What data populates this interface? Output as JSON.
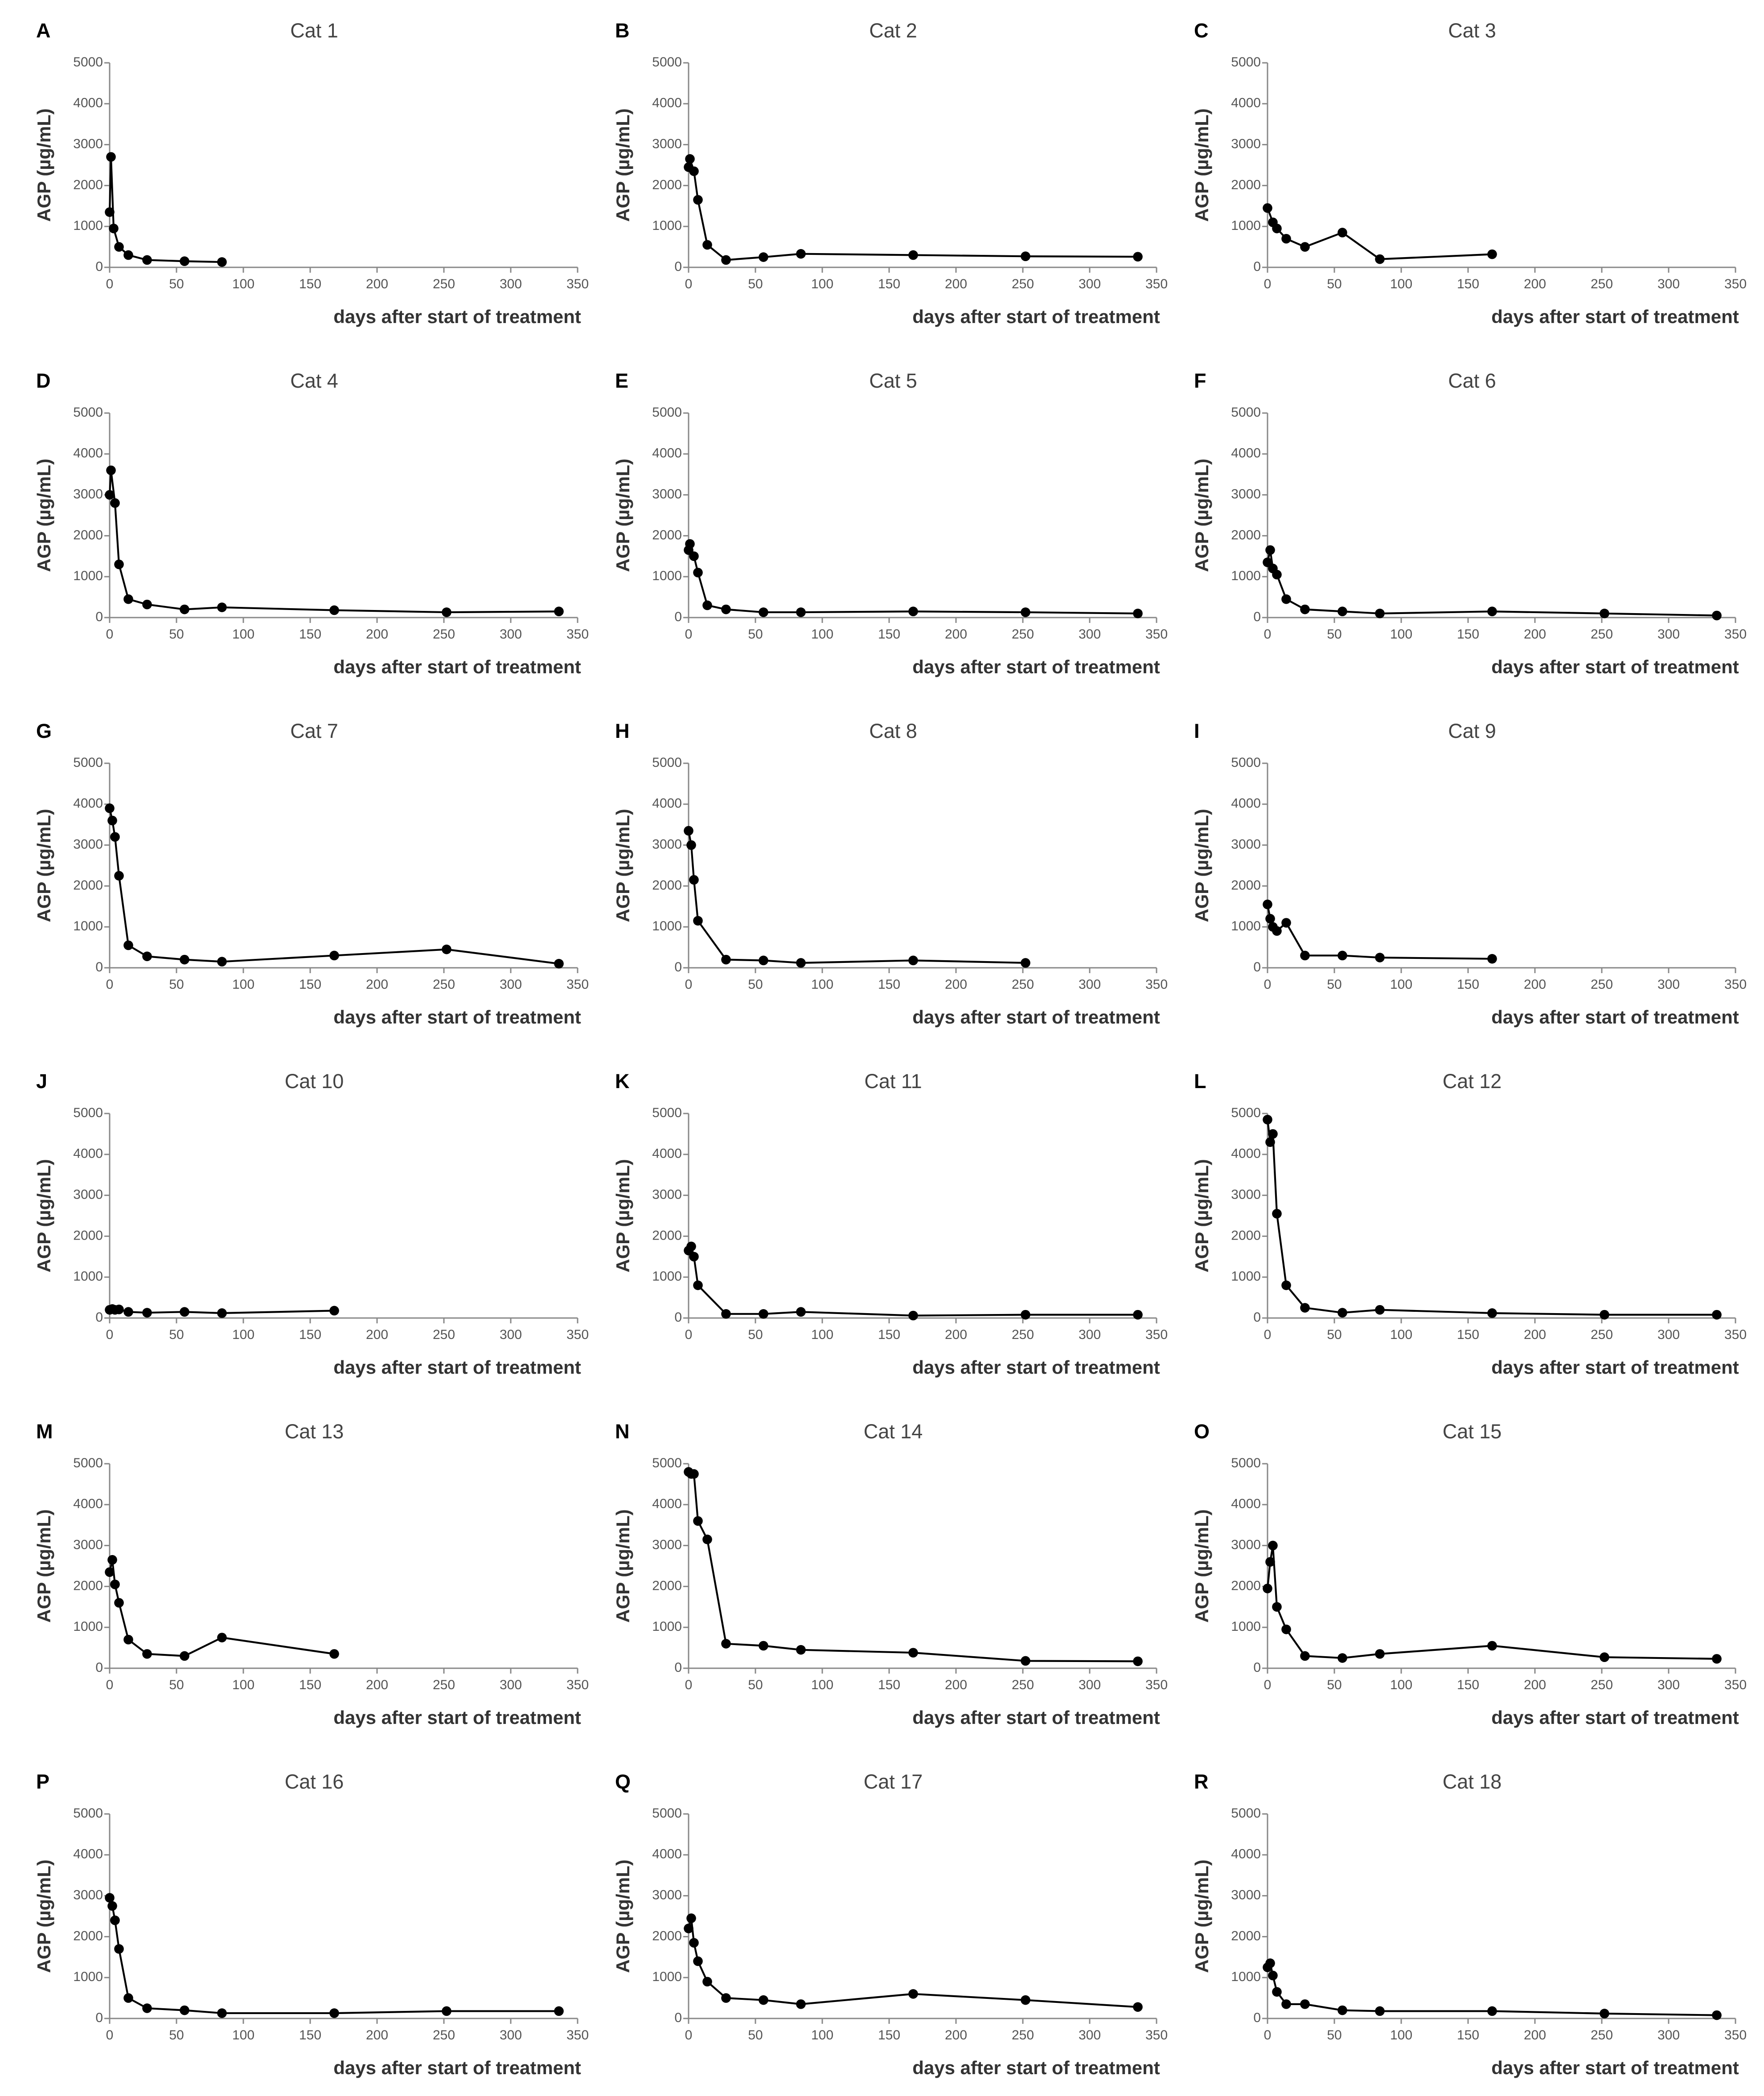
{
  "chart_data": [
    {
      "type": "line",
      "panel_label": "A",
      "title": "Cat 1",
      "x_label": "days after start of treatment",
      "y_label": "AGP (µg/mL)",
      "color": "#000000",
      "x": [
        0,
        1,
        3,
        7,
        14,
        28,
        56,
        84
      ],
      "values": [
        1350,
        2700,
        950,
        500,
        300,
        180,
        150,
        130
      ],
      "xlim": [
        0,
        350
      ],
      "ylim": [
        0,
        5000
      ],
      "xticks": [
        0,
        50,
        100,
        150,
        200,
        250,
        300,
        350
      ],
      "yticks": [
        0,
        1000,
        2000,
        3000,
        4000,
        5000
      ]
    },
    {
      "type": "line",
      "panel_label": "B",
      "title": "Cat 2",
      "x_label": "days after start of treatment",
      "y_label": "AGP (µg/mL)",
      "color": "#000000",
      "x": [
        0,
        1,
        4,
        7,
        14,
        28,
        56,
        84,
        168,
        252,
        336
      ],
      "values": [
        2450,
        2650,
        2350,
        1650,
        550,
        180,
        250,
        330,
        300,
        270,
        260
      ],
      "xlim": [
        0,
        350
      ],
      "ylim": [
        0,
        5000
      ],
      "xticks": [
        0,
        50,
        100,
        150,
        200,
        250,
        300,
        350
      ],
      "yticks": [
        0,
        1000,
        2000,
        3000,
        4000,
        5000
      ]
    },
    {
      "type": "line",
      "panel_label": "C",
      "title": "Cat 3",
      "x_label": "days after start of treatment",
      "y_label": "AGP (µg/mL)",
      "color": "#000000",
      "x": [
        0,
        4,
        7,
        14,
        28,
        56,
        84,
        168
      ],
      "values": [
        1450,
        1100,
        950,
        700,
        500,
        850,
        200,
        320
      ],
      "xlim": [
        0,
        350
      ],
      "ylim": [
        0,
        5000
      ],
      "xticks": [
        0,
        50,
        100,
        150,
        200,
        250,
        300,
        350
      ],
      "yticks": [
        0,
        1000,
        2000,
        3000,
        4000,
        5000
      ]
    },
    {
      "type": "line",
      "panel_label": "D",
      "title": "Cat 4",
      "x_label": "days after start of treatment",
      "y_label": "AGP (µg/mL)",
      "color": "#000000",
      "x": [
        0,
        1,
        4,
        7,
        14,
        28,
        56,
        84,
        168,
        252,
        336
      ],
      "values": [
        3000,
        3600,
        2800,
        1300,
        450,
        320,
        200,
        250,
        180,
        130,
        150
      ],
      "xlim": [
        0,
        350
      ],
      "ylim": [
        0,
        5000
      ],
      "xticks": [
        0,
        50,
        100,
        150,
        200,
        250,
        300,
        350
      ],
      "yticks": [
        0,
        1000,
        2000,
        3000,
        4000,
        5000
      ]
    },
    {
      "type": "line",
      "panel_label": "E",
      "title": "Cat 5",
      "x_label": "days after start of treatment",
      "y_label": "AGP (µg/mL)",
      "color": "#000000",
      "x": [
        0,
        1,
        4,
        7,
        14,
        28,
        56,
        84,
        168,
        252,
        336
      ],
      "values": [
        1650,
        1800,
        1500,
        1100,
        300,
        200,
        130,
        130,
        150,
        130,
        100
      ],
      "xlim": [
        0,
        350
      ],
      "ylim": [
        0,
        5000
      ],
      "xticks": [
        0,
        50,
        100,
        150,
        200,
        250,
        300,
        350
      ],
      "yticks": [
        0,
        1000,
        2000,
        3000,
        4000,
        5000
      ]
    },
    {
      "type": "line",
      "panel_label": "F",
      "title": "Cat 6",
      "x_label": "days after start of treatment",
      "y_label": "AGP (µg/mL)",
      "color": "#000000",
      "x": [
        0,
        2,
        4,
        7,
        14,
        28,
        56,
        84,
        168,
        252,
        336
      ],
      "values": [
        1350,
        1650,
        1200,
        1050,
        450,
        200,
        150,
        100,
        150,
        100,
        50
      ],
      "xlim": [
        0,
        350
      ],
      "ylim": [
        0,
        5000
      ],
      "xticks": [
        0,
        50,
        100,
        150,
        200,
        250,
        300,
        350
      ],
      "yticks": [
        0,
        1000,
        2000,
        3000,
        4000,
        5000
      ]
    },
    {
      "type": "line",
      "panel_label": "G",
      "title": "Cat 7",
      "x_label": "days after start of treatment",
      "y_label": "AGP (µg/mL)",
      "color": "#000000",
      "x": [
        0,
        2,
        4,
        7,
        14,
        28,
        56,
        84,
        168,
        252,
        336
      ],
      "values": [
        3900,
        3600,
        3200,
        2250,
        550,
        280,
        200,
        150,
        300,
        450,
        100
      ],
      "xlim": [
        0,
        350
      ],
      "ylim": [
        0,
        5000
      ],
      "xticks": [
        0,
        50,
        100,
        150,
        200,
        250,
        300,
        350
      ],
      "yticks": [
        0,
        1000,
        2000,
        3000,
        4000,
        5000
      ]
    },
    {
      "type": "line",
      "panel_label": "H",
      "title": "Cat 8",
      "x_label": "days after start of treatment",
      "y_label": "AGP (µg/mL)",
      "color": "#000000",
      "x": [
        0,
        2,
        4,
        7,
        28,
        56,
        84,
        168,
        252
      ],
      "values": [
        3350,
        3000,
        2150,
        1150,
        200,
        180,
        120,
        180,
        120
      ],
      "xlim": [
        0,
        350
      ],
      "ylim": [
        0,
        5000
      ],
      "xticks": [
        0,
        50,
        100,
        150,
        200,
        250,
        300,
        350
      ],
      "yticks": [
        0,
        1000,
        2000,
        3000,
        4000,
        5000
      ]
    },
    {
      "type": "line",
      "panel_label": "I",
      "title": "Cat 9",
      "x_label": "days after start of treatment",
      "y_label": "AGP (µg/mL)",
      "color": "#000000",
      "x": [
        0,
        2,
        4,
        7,
        14,
        28,
        56,
        84,
        168
      ],
      "values": [
        1550,
        1200,
        1000,
        900,
        1100,
        300,
        300,
        250,
        220
      ],
      "xlim": [
        0,
        350
      ],
      "ylim": [
        0,
        5000
      ],
      "xticks": [
        0,
        50,
        100,
        150,
        200,
        250,
        300,
        350
      ],
      "yticks": [
        0,
        1000,
        2000,
        3000,
        4000,
        5000
      ]
    },
    {
      "type": "line",
      "panel_label": "J",
      "title": "Cat 10",
      "x_label": "days after start of treatment",
      "y_label": "AGP (µg/mL)",
      "color": "#000000",
      "x": [
        0,
        2,
        4,
        7,
        14,
        28,
        56,
        84,
        168
      ],
      "values": [
        200,
        220,
        200,
        210,
        150,
        130,
        150,
        120,
        180
      ],
      "xlim": [
        0,
        350
      ],
      "ylim": [
        0,
        5000
      ],
      "xticks": [
        0,
        50,
        100,
        150,
        200,
        250,
        300,
        350
      ],
      "yticks": [
        0,
        1000,
        2000,
        3000,
        4000,
        5000
      ]
    },
    {
      "type": "line",
      "panel_label": "K",
      "title": "Cat 11",
      "x_label": "days after start of treatment",
      "y_label": "AGP (µg/mL)",
      "color": "#000000",
      "x": [
        0,
        2,
        4,
        7,
        28,
        56,
        84,
        168,
        252,
        336
      ],
      "values": [
        1650,
        1750,
        1500,
        800,
        100,
        100,
        150,
        60,
        80,
        80
      ],
      "xlim": [
        0,
        350
      ],
      "ylim": [
        0,
        5000
      ],
      "xticks": [
        0,
        50,
        100,
        150,
        200,
        250,
        300,
        350
      ],
      "yticks": [
        0,
        1000,
        2000,
        3000,
        4000,
        5000
      ]
    },
    {
      "type": "line",
      "panel_label": "L",
      "title": "Cat 12",
      "x_label": "days after start of treatment",
      "y_label": "AGP (µg/mL)",
      "color": "#000000",
      "x": [
        0,
        2,
        4,
        7,
        14,
        28,
        56,
        84,
        168,
        252,
        336
      ],
      "values": [
        4850,
        4300,
        4500,
        2550,
        800,
        250,
        130,
        200,
        120,
        80,
        80
      ],
      "xlim": [
        0,
        350
      ],
      "ylim": [
        0,
        5000
      ],
      "xticks": [
        0,
        50,
        100,
        150,
        200,
        250,
        300,
        350
      ],
      "yticks": [
        0,
        1000,
        2000,
        3000,
        4000,
        5000
      ]
    },
    {
      "type": "line",
      "panel_label": "M",
      "title": "Cat 13",
      "x_label": "days after start of treatment",
      "y_label": "AGP (µg/mL)",
      "color": "#000000",
      "x": [
        0,
        2,
        4,
        7,
        14,
        28,
        56,
        84,
        168
      ],
      "values": [
        2350,
        2650,
        2050,
        1600,
        700,
        350,
        300,
        750,
        350
      ],
      "xlim": [
        0,
        350
      ],
      "ylim": [
        0,
        5000
      ],
      "xticks": [
        0,
        50,
        100,
        150,
        200,
        250,
        300,
        350
      ],
      "yticks": [
        0,
        1000,
        2000,
        3000,
        4000,
        5000
      ]
    },
    {
      "type": "line",
      "panel_label": "N",
      "title": "Cat 14",
      "x_label": "days after start of treatment",
      "y_label": "AGP (µg/mL)",
      "color": "#000000",
      "x": [
        0,
        2,
        4,
        7,
        14,
        28,
        56,
        84,
        168,
        252,
        336
      ],
      "values": [
        4800,
        4750,
        4750,
        3600,
        3150,
        600,
        550,
        450,
        380,
        180,
        170
      ],
      "xlim": [
        0,
        350
      ],
      "ylim": [
        0,
        5000
      ],
      "xticks": [
        0,
        50,
        100,
        150,
        200,
        250,
        300,
        350
      ],
      "yticks": [
        0,
        1000,
        2000,
        3000,
        4000,
        5000
      ]
    },
    {
      "type": "line",
      "panel_label": "O",
      "title": "Cat 15",
      "x_label": "days after start of treatment",
      "y_label": "AGP (µg/mL)",
      "color": "#000000",
      "x": [
        0,
        2,
        4,
        7,
        14,
        28,
        56,
        84,
        168,
        252,
        336
      ],
      "values": [
        1950,
        2600,
        3000,
        1500,
        950,
        300,
        250,
        350,
        550,
        270,
        230
      ],
      "xlim": [
        0,
        350
      ],
      "ylim": [
        0,
        5000
      ],
      "xticks": [
        0,
        50,
        100,
        150,
        200,
        250,
        300,
        350
      ],
      "yticks": [
        0,
        1000,
        2000,
        3000,
        4000,
        5000
      ]
    },
    {
      "type": "line",
      "panel_label": "P",
      "title": "Cat 16",
      "x_label": "days after start of treatment",
      "y_label": "AGP (µg/mL)",
      "color": "#000000",
      "x": [
        0,
        2,
        4,
        7,
        14,
        28,
        56,
        84,
        168,
        252,
        336
      ],
      "values": [
        2950,
        2750,
        2400,
        1700,
        500,
        250,
        200,
        130,
        130,
        180,
        180
      ],
      "xlim": [
        0,
        350
      ],
      "ylim": [
        0,
        5000
      ],
      "xticks": [
        0,
        50,
        100,
        150,
        200,
        250,
        300,
        350
      ],
      "yticks": [
        0,
        1000,
        2000,
        3000,
        4000,
        5000
      ]
    },
    {
      "type": "line",
      "panel_label": "Q",
      "title": "Cat 17",
      "x_label": "days after start of treatment",
      "y_label": "AGP (µg/mL)",
      "color": "#000000",
      "x": [
        0,
        2,
        4,
        7,
        14,
        28,
        56,
        84,
        168,
        252,
        336
      ],
      "values": [
        2200,
        2450,
        1850,
        1400,
        900,
        500,
        450,
        350,
        600,
        450,
        280
      ],
      "xlim": [
        0,
        350
      ],
      "ylim": [
        0,
        5000
      ],
      "xticks": [
        0,
        50,
        100,
        150,
        200,
        250,
        300,
        350
      ],
      "yticks": [
        0,
        1000,
        2000,
        3000,
        4000,
        5000
      ]
    },
    {
      "type": "line",
      "panel_label": "R",
      "title": "Cat 18",
      "x_label": "days after start of treatment",
      "y_label": "AGP (µg/mL)",
      "color": "#000000",
      "x": [
        0,
        2,
        4,
        7,
        14,
        28,
        56,
        84,
        168,
        252,
        336
      ],
      "values": [
        1250,
        1350,
        1050,
        650,
        350,
        350,
        200,
        180,
        180,
        120,
        80
      ],
      "xlim": [
        0,
        350
      ],
      "ylim": [
        0,
        5000
      ],
      "xticks": [
        0,
        50,
        100,
        150,
        200,
        250,
        300,
        350
      ],
      "yticks": [
        0,
        1000,
        2000,
        3000,
        4000,
        5000
      ]
    }
  ]
}
